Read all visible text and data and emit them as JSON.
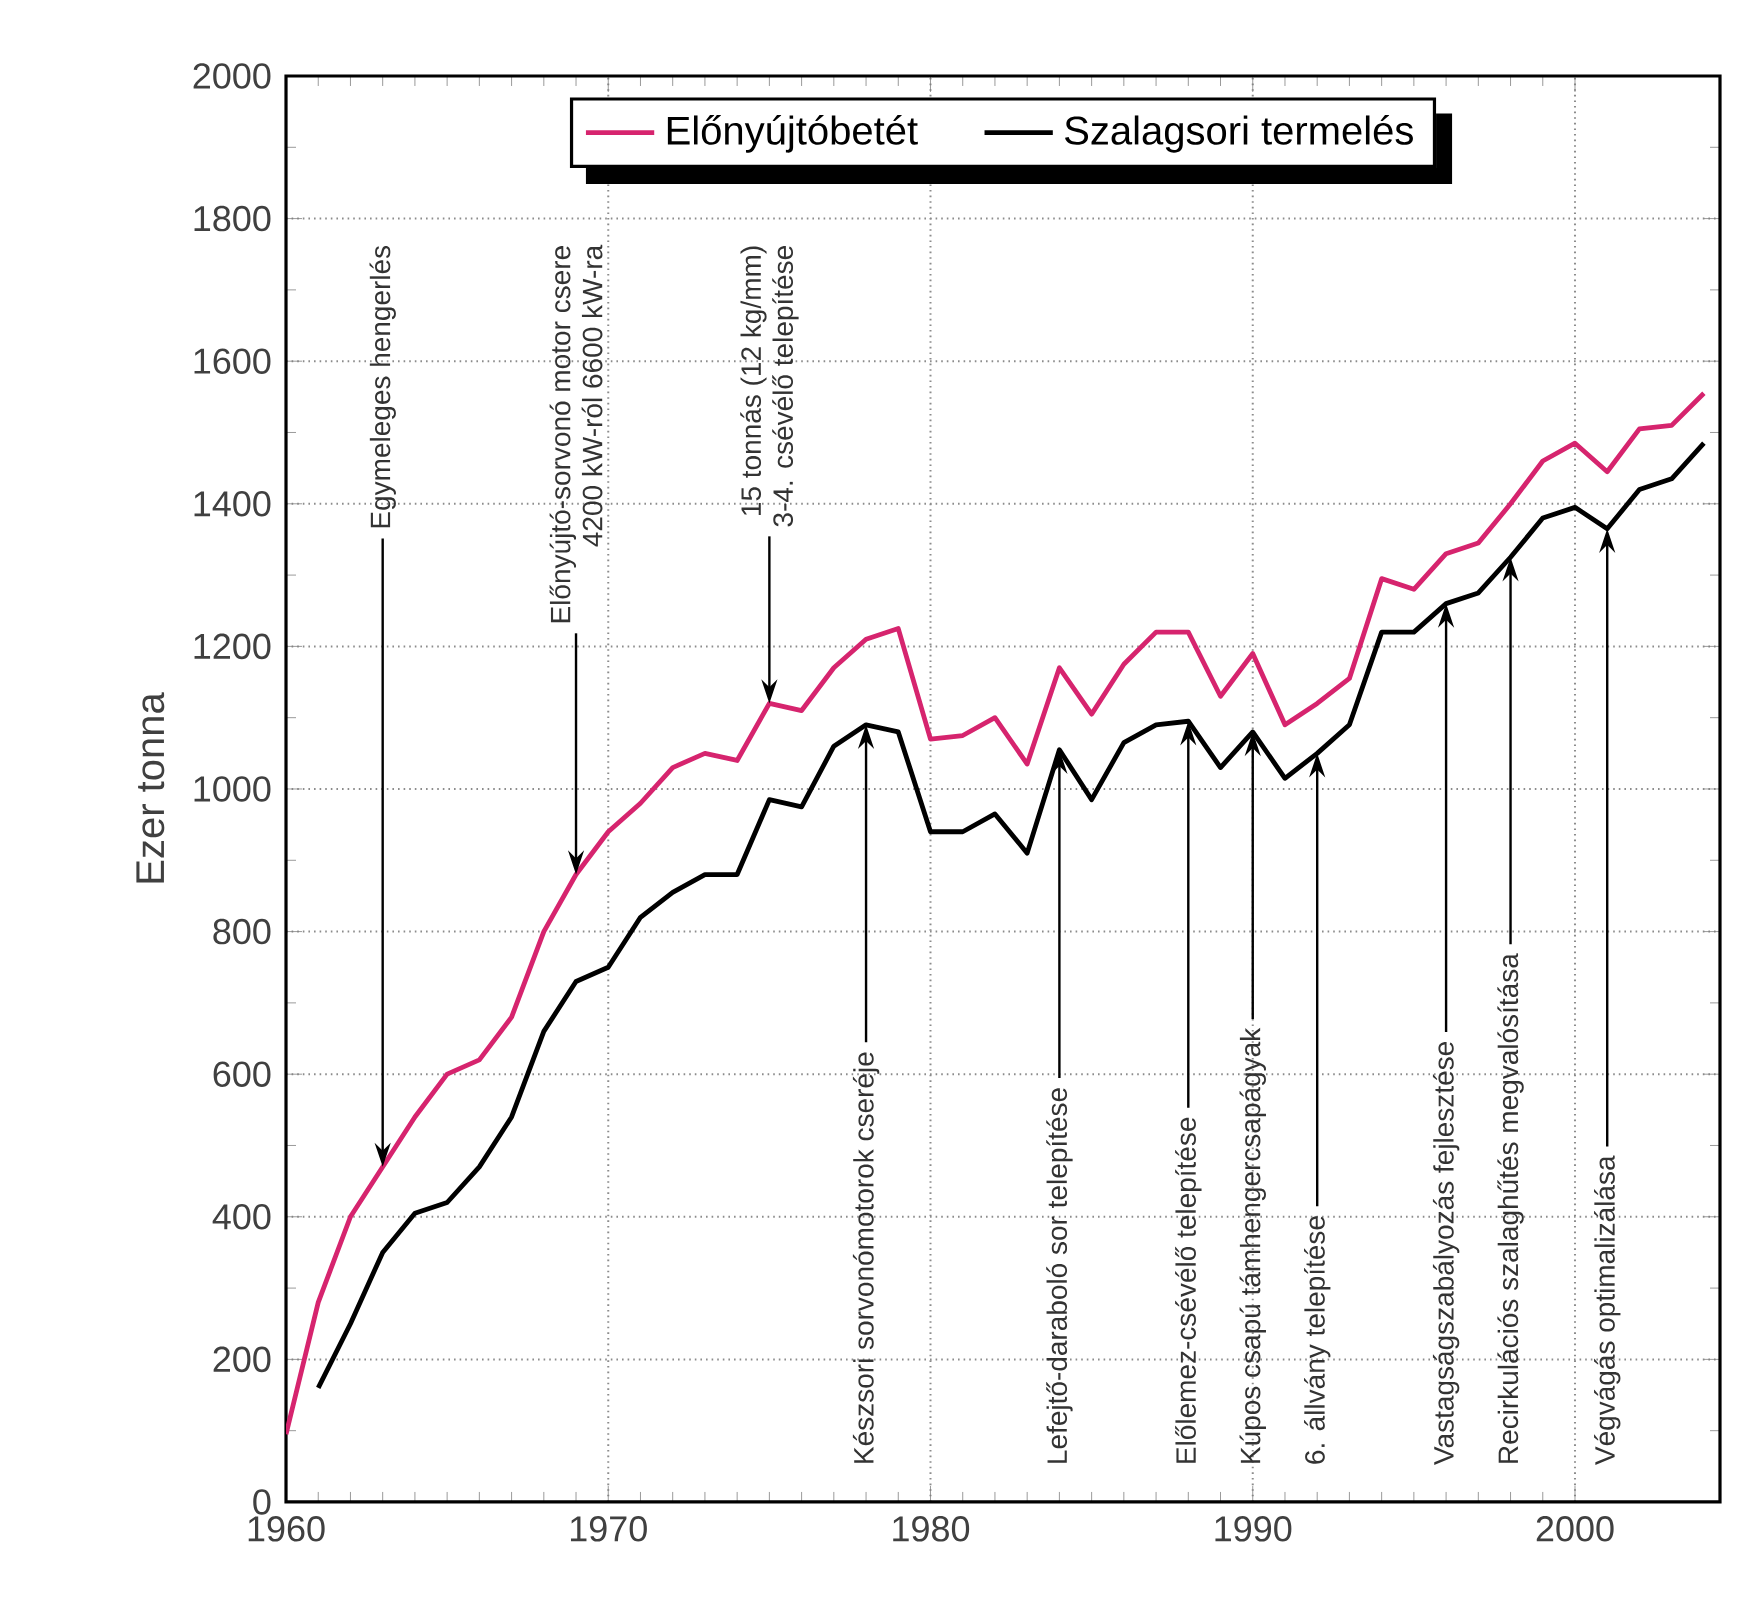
{
  "chart_data": {
    "type": "line",
    "ylabel": "Ezer tonna",
    "x": [
      1960,
      1961,
      1962,
      1963,
      1964,
      1965,
      1966,
      1967,
      1968,
      1969,
      1970,
      1971,
      1972,
      1973,
      1974,
      1975,
      1976,
      1977,
      1978,
      1979,
      1980,
      1981,
      1982,
      1983,
      1984,
      1985,
      1986,
      1987,
      1988,
      1989,
      1990,
      1991,
      1992,
      1993,
      1994,
      1995,
      1996,
      1997,
      1998,
      1999,
      2000,
      2001,
      2002,
      2003,
      2004
    ],
    "series": [
      {
        "name": "Előnyújtóbetét",
        "color": "#d6246e",
        "values": [
          95,
          280,
          400,
          470,
          540,
          600,
          620,
          680,
          800,
          880,
          940,
          980,
          1030,
          1050,
          1040,
          1120,
          1110,
          1170,
          1210,
          1225,
          1070,
          1075,
          1100,
          1035,
          1170,
          1105,
          1175,
          1220,
          1220,
          1130,
          1190,
          1090,
          1120,
          1155,
          1295,
          1280,
          1330,
          1345,
          1400,
          1460,
          1485,
          1445,
          1505,
          1510,
          1555
        ]
      },
      {
        "name": "Szalagsori termelés",
        "color": "#000000",
        "values": [
          null,
          160,
          250,
          350,
          405,
          420,
          470,
          540,
          660,
          730,
          750,
          820,
          855,
          880,
          880,
          985,
          975,
          1060,
          1090,
          1080,
          940,
          940,
          965,
          910,
          1055,
          985,
          1065,
          1090,
          1095,
          1030,
          1080,
          1015,
          1050,
          1090,
          1220,
          1220,
          1260,
          1275,
          1325,
          1380,
          1395,
          1365,
          1420,
          1435,
          1485
        ]
      }
    ],
    "xlim": [
      1960,
      2004.5
    ],
    "ylim": [
      0,
      2000
    ],
    "xticks": [
      1960,
      1970,
      1980,
      1990,
      2000
    ],
    "yticks": [
      0,
      200,
      400,
      600,
      800,
      1000,
      1200,
      1400,
      1600,
      1800,
      2000
    ],
    "grid": true,
    "legend": "top",
    "marker": "none",
    "line_style": "solid",
    "annotations": [
      {
        "text": "Egymeleges hengerlés",
        "x": 1963,
        "y": 470
      },
      {
        "text": "Előnyújtó-sorvonó motor csere",
        "x": 1969,
        "y": 880
      },
      "4200 kW-ról 6600 kW-ra",
      {
        "text": "15 tonnás (12 kg/mm)",
        "x": 1975,
        "y": 1120
      },
      "3-4. csévélő telepítése",
      {
        "text": "Készsori sorvonómotorok cseréje",
        "x": 1978,
        "y": 1090
      },
      {
        "text": "Lefejtő-daraboló sor telepítése",
        "x": 1984,
        "y": 1055
      },
      {
        "text": "Előlemez-csévélő telepítése",
        "x": 1988,
        "y": 1095
      },
      {
        "text": "Kúpos csapú támhengercsapágyak",
        "x": 1990,
        "y": 1080
      },
      {
        "text": "6. állvány telepítése",
        "x": 1992,
        "y": 1050
      },
      {
        "text": "Vastagságszabályozás fejlesztése",
        "x": 1996,
        "y": 1260
      },
      {
        "text": "Recirkulációs szalaghűtés megvalósítása",
        "x": 1998,
        "y": 1325
      },
      {
        "text": "Végvágás optimalizálása",
        "x": 2001,
        "y": 1365
      }
    ]
  }
}
